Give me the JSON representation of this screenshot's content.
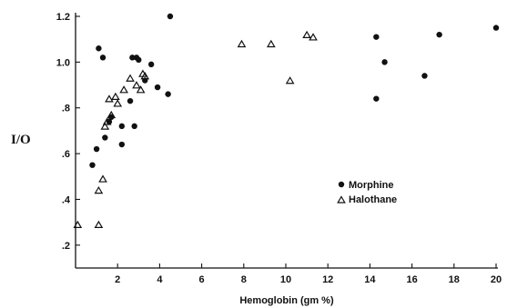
{
  "chart_data": {
    "type": "scatter",
    "title": "",
    "xlabel": "Hemoglobin (gm %)",
    "ylabel": "I/O",
    "xlim": [
      0,
      20
    ],
    "ylim": [
      0.1,
      1.2
    ],
    "x_ticks": [
      2,
      4,
      6,
      8,
      10,
      12,
      14,
      16,
      18,
      20
    ],
    "y_ticks": [
      0.2,
      0.4,
      0.6,
      0.8,
      1.0,
      1.2
    ],
    "y_tick_labels": [
      ".2",
      ".4",
      ".6",
      ".8",
      "1.0",
      "1.2"
    ],
    "grid": false,
    "legend_position": "center-right",
    "series": [
      {
        "name": "Morphine",
        "marker": "filled-circle",
        "color": "#111111",
        "points": [
          [
            0.8,
            0.55
          ],
          [
            1.0,
            0.62
          ],
          [
            1.1,
            1.06
          ],
          [
            1.3,
            1.02
          ],
          [
            1.4,
            0.67
          ],
          [
            1.6,
            0.74
          ],
          [
            1.7,
            0.76
          ],
          [
            2.2,
            0.72
          ],
          [
            2.2,
            0.64
          ],
          [
            2.6,
            0.83
          ],
          [
            2.7,
            1.02
          ],
          [
            2.8,
            0.72
          ],
          [
            2.9,
            1.02
          ],
          [
            3.0,
            1.01
          ],
          [
            3.3,
            0.92
          ],
          [
            3.6,
            0.99
          ],
          [
            3.9,
            0.89
          ],
          [
            4.4,
            0.86
          ],
          [
            4.5,
            1.2
          ],
          [
            14.3,
            1.11
          ],
          [
            14.3,
            0.84
          ],
          [
            14.7,
            1.0
          ],
          [
            16.6,
            0.94
          ],
          [
            17.3,
            1.12
          ],
          [
            20.0,
            1.15
          ]
        ]
      },
      {
        "name": "Halothane",
        "marker": "open-triangle",
        "color": "#111111",
        "points": [
          [
            0.1,
            0.29
          ],
          [
            1.1,
            0.29
          ],
          [
            1.1,
            0.44
          ],
          [
            1.3,
            0.49
          ],
          [
            1.4,
            0.72
          ],
          [
            1.5,
            0.74
          ],
          [
            1.6,
            0.84
          ],
          [
            1.7,
            0.77
          ],
          [
            1.9,
            0.85
          ],
          [
            2.0,
            0.82
          ],
          [
            2.3,
            0.88
          ],
          [
            2.6,
            0.93
          ],
          [
            2.9,
            0.9
          ],
          [
            3.1,
            0.88
          ],
          [
            3.2,
            0.95
          ],
          [
            3.3,
            0.94
          ],
          [
            7.9,
            1.08
          ],
          [
            9.3,
            1.08
          ],
          [
            10.2,
            0.92
          ],
          [
            11.0,
            1.12
          ],
          [
            11.3,
            1.11
          ]
        ]
      }
    ]
  }
}
